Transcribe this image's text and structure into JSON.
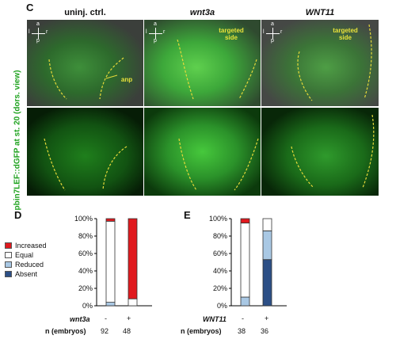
{
  "panel_c": {
    "letter": "C",
    "columns": [
      {
        "title": "uninj. ctrl.",
        "italic": false
      },
      {
        "title": "wnt3a",
        "italic": true
      },
      {
        "title": "WNT11",
        "italic": true
      }
    ],
    "vertical_label": "pbin7LEF::dGFP at st. 20 (dors. view)",
    "orientation_letters": {
      "top": "a",
      "bottom": "p",
      "left": "l",
      "right": "r"
    },
    "annotations": {
      "anp": "anp",
      "targeted_side": "targeted side"
    }
  },
  "panel_d": {
    "letter": "D",
    "legend": [
      {
        "label": "Increased",
        "color": "#e0191e"
      },
      {
        "label": "Equal",
        "color": "#ffffff"
      },
      {
        "label": "Reduced",
        "color": "#a9c8e4"
      },
      {
        "label": "Absent",
        "color": "#2c4f86"
      }
    ],
    "row_labels": {
      "treatment": "wnt3a",
      "n": "n (embryos)"
    },
    "col_signs": [
      "-",
      "+"
    ],
    "n_values": [
      "92",
      "48"
    ]
  },
  "panel_e": {
    "letter": "E",
    "row_labels": {
      "treatment": "WNT11",
      "n": "n (embryos)"
    },
    "col_signs": [
      "-",
      "+"
    ],
    "n_values": [
      "38",
      "36"
    ]
  },
  "chart_data": [
    {
      "type": "bar",
      "stacked": true,
      "panel": "D",
      "categories": [
        "-",
        "+"
      ],
      "ylim": [
        0,
        100
      ],
      "y_ticks": [
        "0%",
        "20%",
        "40%",
        "60%",
        "80%",
        "100%"
      ],
      "series": [
        {
          "name": "Absent",
          "color": "#2c4f86",
          "values": [
            0,
            0
          ]
        },
        {
          "name": "Reduced",
          "color": "#a9c8e4",
          "values": [
            4,
            0
          ]
        },
        {
          "name": "Equal",
          "color": "#ffffff",
          "values": [
            93,
            8
          ]
        },
        {
          "name": "Increased",
          "color": "#e0191e",
          "values": [
            3,
            92
          ]
        }
      ]
    },
    {
      "type": "bar",
      "stacked": true,
      "panel": "E",
      "categories": [
        "-",
        "+"
      ],
      "ylim": [
        0,
        100
      ],
      "y_ticks": [
        "0%",
        "20%",
        "40%",
        "60%",
        "80%",
        "100%"
      ],
      "series": [
        {
          "name": "Absent",
          "color": "#2c4f86",
          "values": [
            0,
            53
          ]
        },
        {
          "name": "Reduced",
          "color": "#a9c8e4",
          "values": [
            10,
            33
          ]
        },
        {
          "name": "Equal",
          "color": "#ffffff",
          "values": [
            85,
            14
          ]
        },
        {
          "name": "Increased",
          "color": "#e0191e",
          "values": [
            5,
            0
          ]
        }
      ]
    }
  ]
}
